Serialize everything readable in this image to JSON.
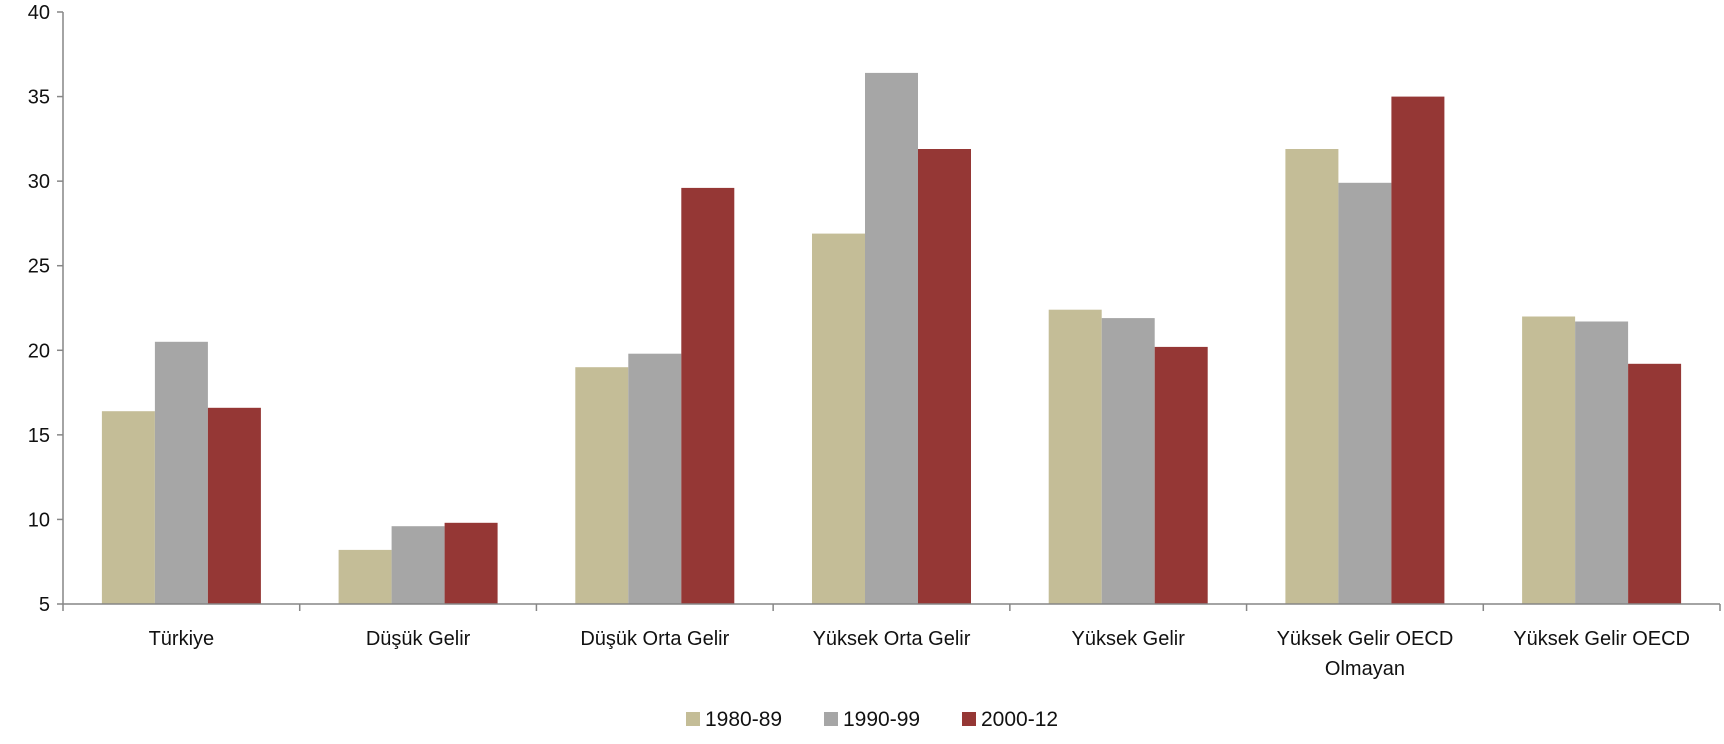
{
  "chart_data": {
    "type": "bar",
    "title": "",
    "xlabel": "",
    "ylabel": "",
    "ylim": [
      5,
      40
    ],
    "yticks": [
      5,
      10,
      15,
      20,
      25,
      30,
      35,
      40
    ],
    "grid": false,
    "legend_position": "bottom",
    "categories": [
      [
        "Türkiye"
      ],
      [
        "Düşük Gelir"
      ],
      [
        "Düşük Orta Gelir"
      ],
      [
        "Yüksek Orta Gelir"
      ],
      [
        "Yüksek Gelir"
      ],
      [
        "Yüksek Gelir OECD",
        "Olmayan"
      ],
      [
        "Yüksek Gelir OECD"
      ]
    ],
    "series": [
      {
        "name": "1980-89",
        "color": "#c4bd97",
        "values": [
          16.4,
          8.2,
          19.0,
          26.9,
          22.4,
          31.9,
          22.0
        ]
      },
      {
        "name": "1990-99",
        "color": "#a6a6a6",
        "values": [
          20.5,
          9.6,
          19.8,
          36.4,
          21.9,
          29.9,
          21.7
        ]
      },
      {
        "name": "2000-12",
        "color": "#953735",
        "values": [
          16.6,
          9.8,
          29.6,
          31.9,
          20.2,
          35.0,
          19.2
        ]
      }
    ]
  }
}
